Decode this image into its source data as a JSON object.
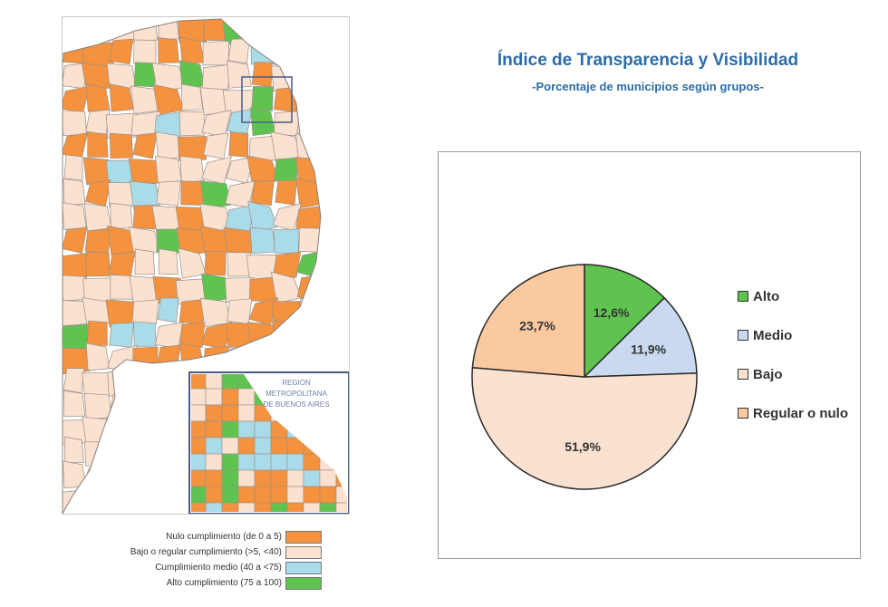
{
  "map": {
    "inset_label_lines": [
      "REGION",
      "METROPOLITANA",
      "DE BUENOS AIRES"
    ],
    "legend": [
      {
        "label": "Nulo cumplimiento (de 0 a 5)",
        "color": "#f4923e"
      },
      {
        "label": "Bajo o regular cumplimiento (>5, <40)",
        "color": "#fbe1cf"
      },
      {
        "label": "Cumplimiento medio (40 a <75)",
        "color": "#a9dbe8"
      },
      {
        "label": "Alto cumplimiento (75 a 100)",
        "color": "#5fc44f"
      }
    ]
  },
  "chart_data": {
    "type": "pie",
    "title": "Índice de Transparencia y Visibilidad",
    "subtitle": "-Porcentaje de municipios según grupos-",
    "legend_position": "right",
    "slices": [
      {
        "name": "Alto",
        "value": 12.6,
        "label": "12,6%",
        "color": "#5fc44f"
      },
      {
        "name": "Medio",
        "value": 11.9,
        "label": "11,9%",
        "color": "#c9daf0"
      },
      {
        "name": "Bajo",
        "value": 51.9,
        "label": "51,9%",
        "color": "#fbe1cf"
      },
      {
        "name": "Regular o nulo",
        "value": 23.7,
        "label": "23,7%",
        "color": "#fbc9a0"
      }
    ]
  }
}
